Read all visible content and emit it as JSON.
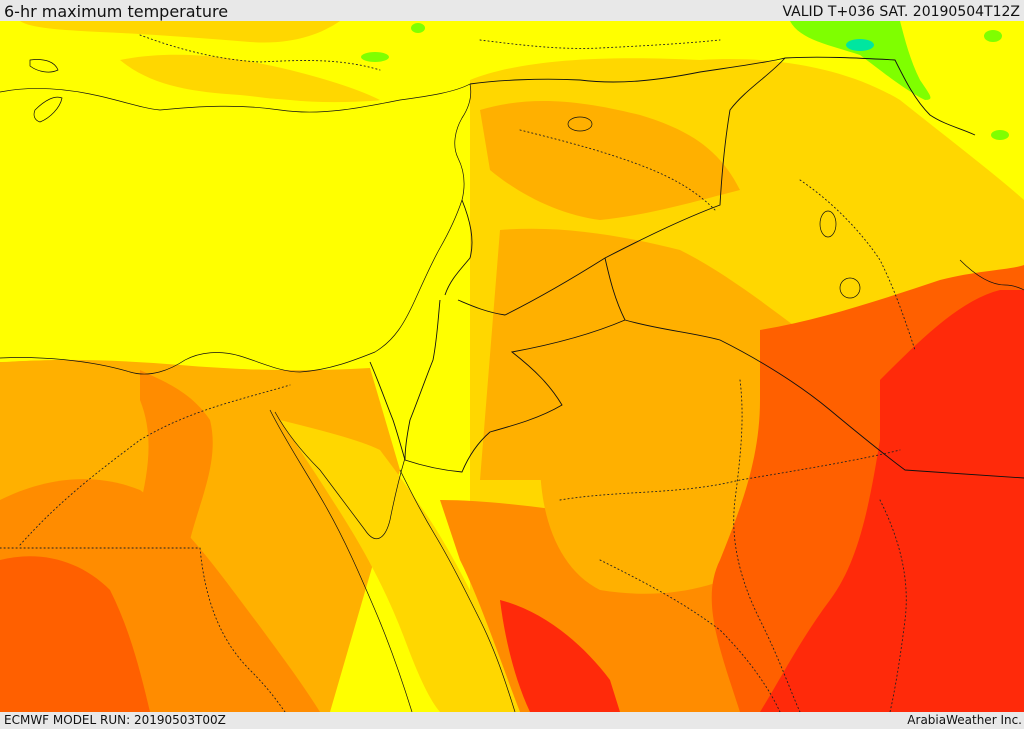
{
  "header": {
    "title": "6-hr maximum temperature",
    "valid": "VALID T+036 SAT. 20190504T12Z"
  },
  "footer": {
    "model_run": "ECMWF MODEL RUN: 20190503T00Z",
    "credit": "ArabiaWeather Inc."
  },
  "colors": {
    "frame": "#e8e8e8",
    "sea_mild": "#ffff00",
    "warm_1": "#ffd700",
    "warm_2": "#ffb000",
    "warm_3": "#ff8c00",
    "hot_1": "#ff6000",
    "hot_2": "#ff2a0a",
    "cool_green": "#7fff00",
    "cool_teal": "#00e6a0"
  }
}
